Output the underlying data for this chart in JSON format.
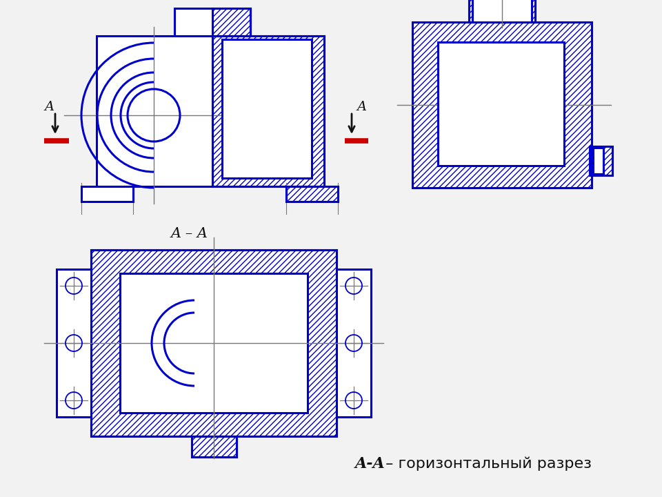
{
  "bg_color": "#f2f2f2",
  "line_color": "#0000cc",
  "hatch_color": "#0000cc",
  "red_color": "#cc0000",
  "black_color": "#111111",
  "gray_color": "#777777",
  "lw_main": 2.2,
  "lw_thin": 1.0,
  "section_label": "A – A",
  "bottom_text_bold": "A-A",
  "bottom_text_rest": " – горизонтальный разрез",
  "label_A": "A"
}
